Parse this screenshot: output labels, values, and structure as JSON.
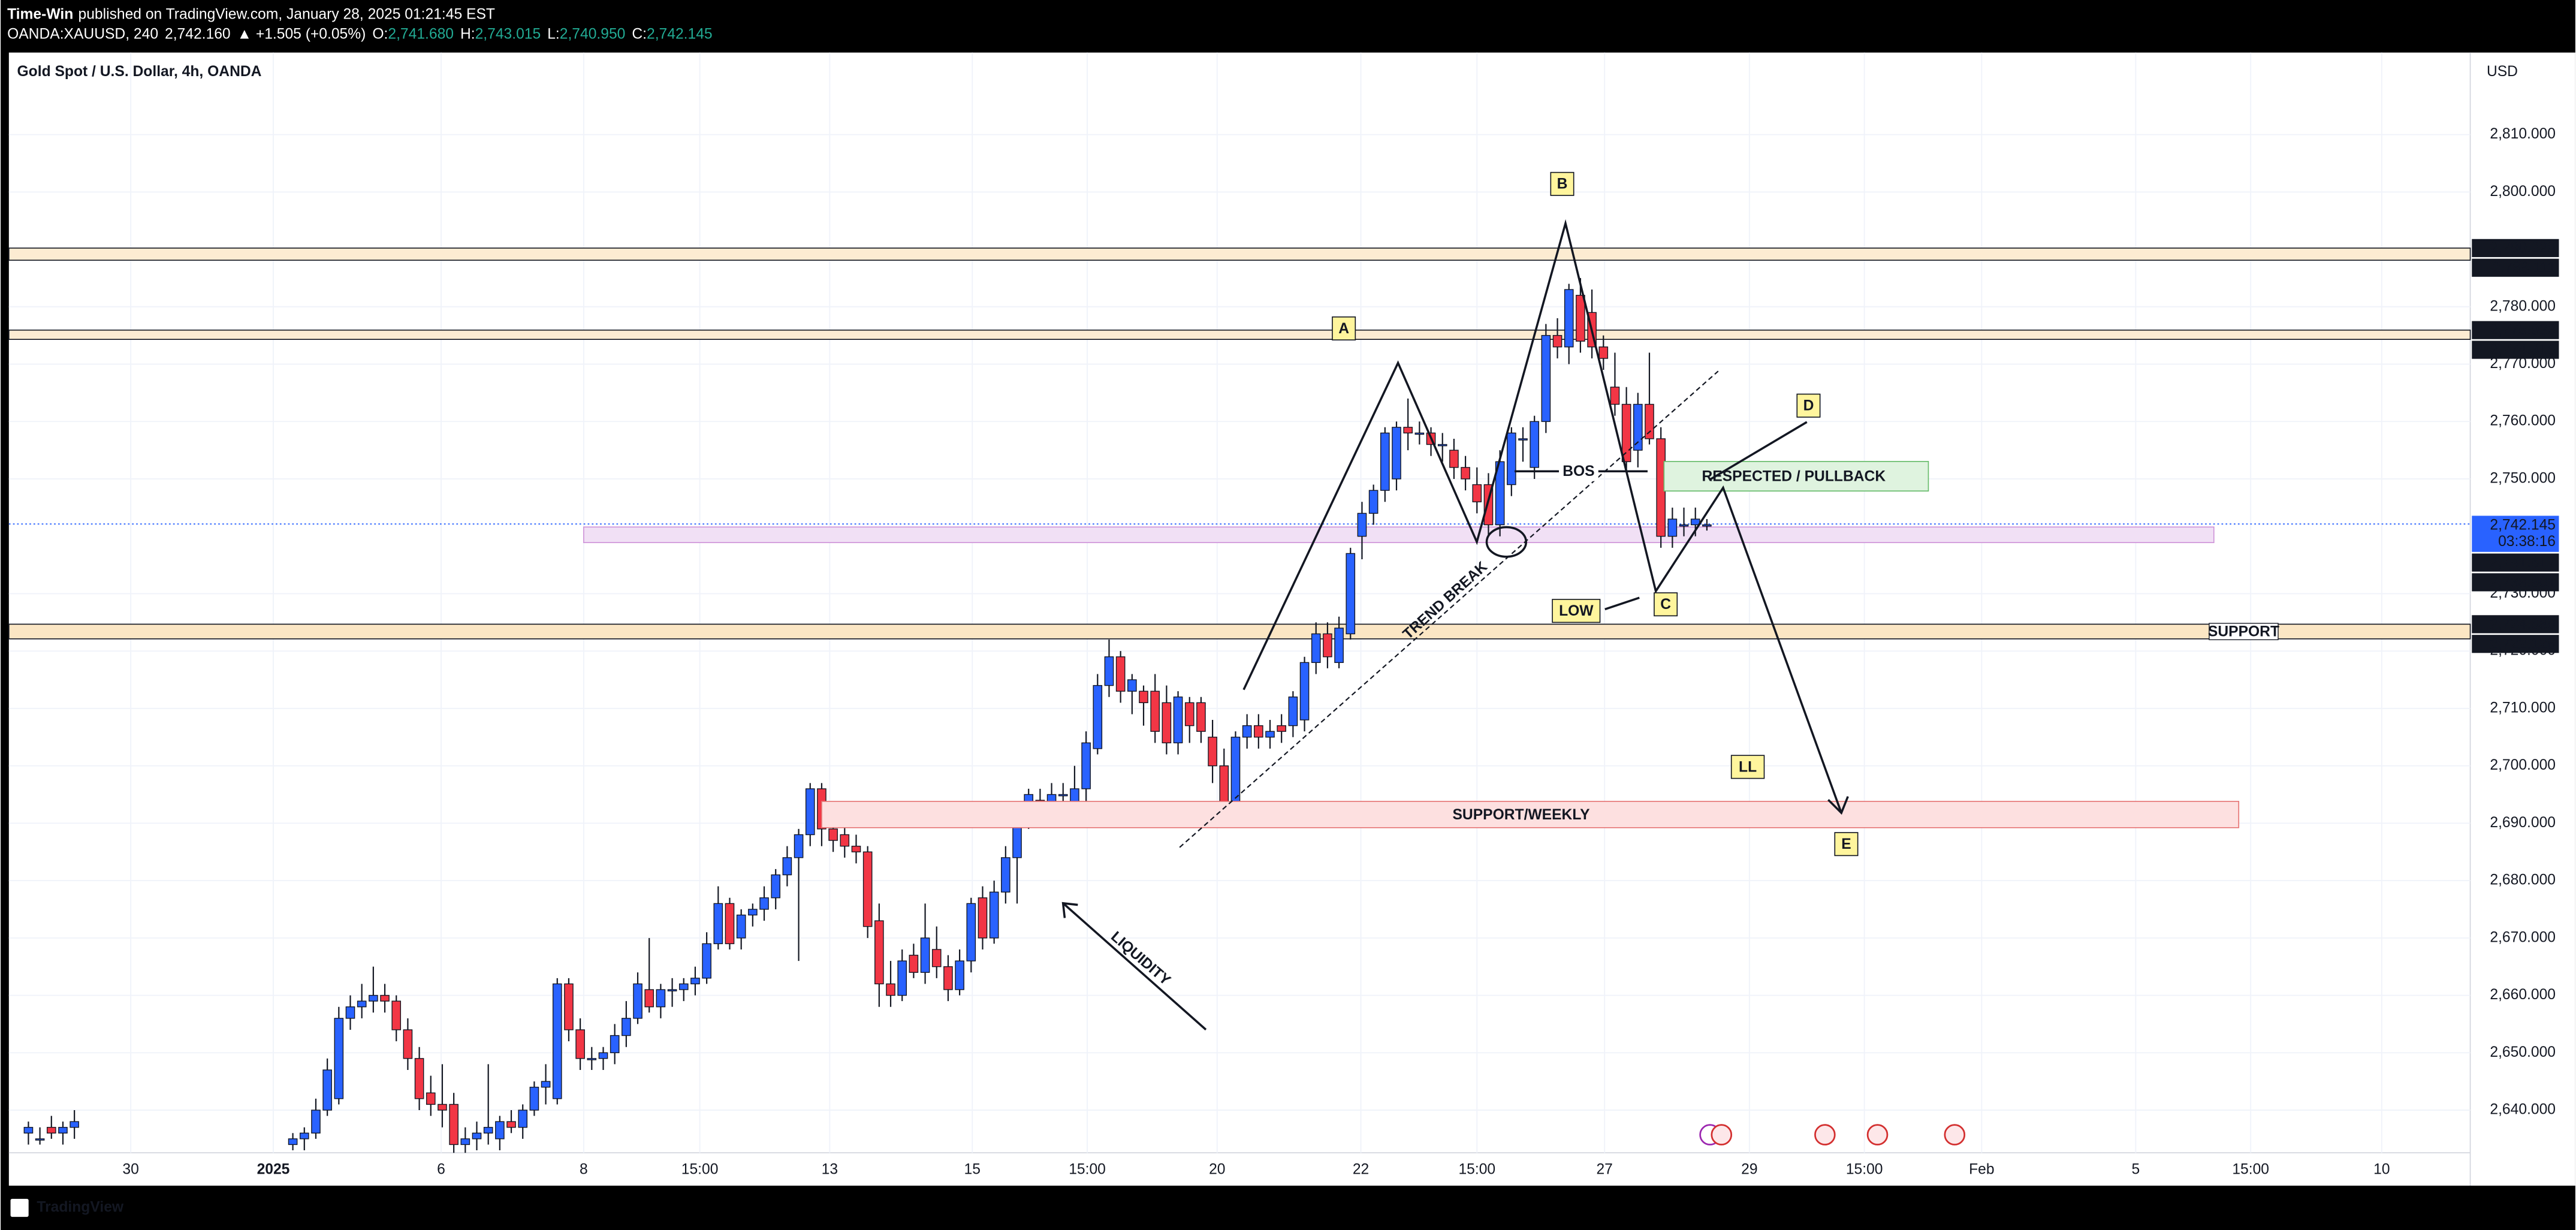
{
  "header": {
    "author": "Time-Win",
    "published": "published on TradingView.com, January 28, 2025 01:21:45 EST",
    "symbol": "OANDA:XAUUSD, 240",
    "last": "2,742.160",
    "change": "▲ +1.505 (+0.05%)",
    "ohlc": [
      {
        "label": "O:",
        "value": "2,741.680"
      },
      {
        "label": "H:",
        "value": "2,743.015"
      },
      {
        "label": "L:",
        "value": "2,740.950"
      },
      {
        "label": "C:",
        "value": "2,742.145"
      }
    ]
  },
  "footer": {
    "brand": "TradingView"
  },
  "chart_data": {
    "type": "candlestick",
    "title": "Gold Spot / U.S. Dollar, 4h, OANDA",
    "currency": "USD",
    "up_color": "#2962ff",
    "down_color": "#f23645",
    "grid": true,
    "x": [
      1,
      2,
      3,
      4,
      5,
      24,
      25,
      26,
      27,
      28,
      29,
      30,
      31,
      32,
      33,
      34,
      35,
      36,
      37,
      38,
      39,
      40,
      41,
      42,
      43,
      44,
      45,
      46,
      47,
      48,
      49,
      50,
      51,
      52,
      53,
      54,
      55,
      56,
      57,
      58,
      59,
      60,
      61,
      62,
      63,
      64,
      65,
      66,
      67,
      68,
      69,
      70,
      71,
      72,
      73,
      74,
      75,
      76,
      77,
      78,
      79,
      80,
      81,
      82,
      83,
      84,
      85,
      86,
      87,
      88,
      89,
      90,
      91,
      92,
      93,
      94,
      95,
      96,
      97,
      98,
      99,
      100,
      101,
      102,
      103,
      104,
      105,
      106,
      107,
      108,
      109,
      110,
      111,
      112,
      113,
      114,
      115,
      116,
      117,
      118,
      119,
      120,
      121,
      122,
      123,
      124,
      125,
      126,
      127,
      128,
      129,
      130,
      131,
      132,
      133,
      134,
      135,
      136,
      137,
      138,
      139,
      140,
      141,
      142,
      143,
      144,
      145,
      146,
      147
    ],
    "open": [
      2636,
      2635,
      2637,
      2636,
      2637,
      2634,
      2635,
      2636,
      2640,
      2642,
      2656,
      2658,
      2659,
      2660,
      2659,
      2654,
      2649,
      2643,
      2641,
      2641,
      2634,
      2635,
      2636,
      2635,
      2638,
      2637,
      2640,
      2644,
      2642,
      2662,
      2654,
      2649,
      2649,
      2650,
      2653,
      2656,
      2661,
      2658,
      2661,
      2661,
      2662,
      2663,
      2669,
      2676,
      2670,
      2674,
      2675,
      2677,
      2681,
      2684,
      2688,
      2696,
      2689,
      2688,
      2686,
      2685,
      2673,
      2662,
      2660,
      2667,
      2664,
      2668,
      2665,
      2661,
      2666,
      2677,
      2670,
      2678,
      2684,
      2691,
      2694,
      2692,
      2695,
      2693,
      2696,
      2703,
      2714,
      2719,
      2713,
      2713,
      2713,
      2711,
      2704,
      2711,
      2711,
      2705,
      2700,
      2692,
      2705,
      2707,
      2705,
      2707,
      2707,
      2708,
      2718,
      2723,
      2718,
      2723,
      2740,
      2744,
      2748,
      2750,
      2759,
      2758,
      2758,
      2756,
      2755,
      2752,
      2749,
      2749,
      2742,
      2749,
      2757,
      2752,
      2760,
      2775,
      2773,
      2782,
      2779,
      2773,
      2766,
      2763,
      2755,
      2763,
      2757,
      2740,
      2742,
      2742,
      2742
    ],
    "high": [
      2638,
      2637,
      2639,
      2638,
      2640,
      2636,
      2637,
      2642,
      2649,
      2658,
      2660,
      2662,
      2665,
      2662,
      2660,
      2656,
      2651,
      2646,
      2648,
      2643,
      2637,
      2638,
      2648,
      2639,
      2640,
      2641,
      2645,
      2648,
      2663,
      2663,
      2656,
      2651,
      2651,
      2655,
      2659,
      2664,
      2670,
      2662,
      2663,
      2663,
      2665,
      2671,
      2679,
      2677,
      2675,
      2676,
      2679,
      2682,
      2686,
      2689,
      2697,
      2697,
      2692,
      2690,
      2688,
      2686,
      2676,
      2666,
      2668,
      2669,
      2676,
      2672,
      2667,
      2668,
      2677,
      2679,
      2680,
      2686,
      2693,
      2696,
      2696,
      2697,
      2697,
      2700,
      2706,
      2716,
      2722,
      2720,
      2716,
      2714,
      2716,
      2714,
      2713,
      2712,
      2712,
      2708,
      2703,
      2706,
      2709,
      2709,
      2708,
      2709,
      2713,
      2719,
      2725,
      2725,
      2726,
      2738,
      2746,
      2749,
      2759,
      2760,
      2764,
      2760,
      2759,
      2758,
      2757,
      2754,
      2752,
      2751,
      2755,
      2759,
      2759,
      2761,
      2777,
      2778,
      2784,
      2785,
      2783,
      2775,
      2772,
      2766,
      2765,
      2772,
      2759,
      2745,
      2745,
      2745,
      2743
    ],
    "low": [
      2634,
      2634,
      2635,
      2634,
      2635,
      2633,
      2633,
      2635,
      2639,
      2641,
      2654,
      2656,
      2657,
      2657,
      2652,
      2647,
      2640,
      2639,
      2637,
      2631,
      2632,
      2633,
      2634,
      2633,
      2636,
      2635,
      2639,
      2641,
      2641,
      2652,
      2647,
      2647,
      2647,
      2648,
      2651,
      2655,
      2657,
      2656,
      2658,
      2659,
      2660,
      2662,
      2668,
      2668,
      2668,
      2672,
      2673,
      2675,
      2679,
      2666,
      2686,
      2686,
      2685,
      2684,
      2683,
      2670,
      2658,
      2658,
      2659,
      2663,
      2662,
      2663,
      2659,
      2660,
      2664,
      2668,
      2669,
      2676,
      2676,
      2689,
      2690,
      2690,
      2692,
      2691,
      2690,
      2702,
      2712,
      2711,
      2709,
      2707,
      2704,
      2702,
      2702,
      2704,
      2704,
      2697,
      2690,
      2691,
      2703,
      2703,
      2703,
      2704,
      2705,
      2706,
      2716,
      2717,
      2717,
      2722,
      2736,
      2742,
      2746,
      2748,
      2755,
      2756,
      2754,
      2753,
      2750,
      2748,
      2744,
      2740,
      2740,
      2747,
      2753,
      2750,
      2758,
      2771,
      2770,
      2772,
      2771,
      2769,
      2761,
      2751,
      2752,
      2756,
      2738,
      2738,
      2740,
      2740,
      2741
    ],
    "close": [
      2637,
      2635,
      2636,
      2637,
      2638,
      2635,
      2636,
      2640,
      2647,
      2656,
      2658,
      2659,
      2660,
      2659,
      2654,
      2649,
      2642,
      2641,
      2640,
      2634,
      2635,
      2636,
      2637,
      2638,
      2637,
      2640,
      2644,
      2645,
      2662,
      2654,
      2649,
      2649,
      2650,
      2653,
      2656,
      2662,
      2658,
      2661,
      2661,
      2662,
      2663,
      2669,
      2676,
      2669,
      2674,
      2675,
      2677,
      2681,
      2684,
      2688,
      2696,
      2689,
      2687,
      2686,
      2685,
      2672,
      2662,
      2660,
      2666,
      2664,
      2670,
      2665,
      2661,
      2666,
      2676,
      2670,
      2678,
      2684,
      2692,
      2695,
      2692,
      2695,
      2695,
      2696,
      2704,
      2714,
      2719,
      2713,
      2715,
      2711,
      2706,
      2704,
      2712,
      2707,
      2706,
      2700,
      2692,
      2705,
      2707,
      2705,
      2706,
      2706,
      2712,
      2718,
      2723,
      2719,
      2724,
      2737,
      2744,
      2748,
      2758,
      2759,
      2758,
      2758,
      2756,
      2756,
      2752,
      2750,
      2746,
      2742,
      2753,
      2758,
      2757,
      2760,
      2775,
      2773,
      2783,
      2774,
      2773,
      2771,
      2763,
      2753,
      2763,
      2757,
      2740,
      2743,
      2742,
      2743,
      2742
    ],
    "xlim": [
      -0.7,
      213.4
    ],
    "ylim": [
      2632.56,
      2824.3
    ],
    "xticks": [
      {
        "value": 9.9,
        "label": "30"
      },
      {
        "value": 22.3,
        "label": "2025"
      },
      {
        "value": 36.9,
        "label": "6"
      },
      {
        "value": 49.3,
        "label": "8"
      },
      {
        "value": 59.4,
        "label": "15:00"
      },
      {
        "value": 70.7,
        "label": "13"
      },
      {
        "value": 83.1,
        "label": "15"
      },
      {
        "value": 93.1,
        "label": "15:00"
      },
      {
        "value": 104.4,
        "label": "20"
      },
      {
        "value": 116.9,
        "label": "22"
      },
      {
        "value": 127,
        "label": "15:00"
      },
      {
        "value": 138.1,
        "label": "27"
      },
      {
        "value": 150.7,
        "label": "29"
      },
      {
        "value": 160.7,
        "label": "15:00"
      },
      {
        "value": 170.9,
        "label": "Feb"
      },
      {
        "value": 184.3,
        "label": "5"
      },
      {
        "value": 194.3,
        "label": "15:00"
      },
      {
        "value": 205.7,
        "label": "10"
      }
    ],
    "yticks": [
      {
        "value": 2640,
        "label": "2,640.000"
      },
      {
        "value": 2650,
        "label": "2,650.000"
      },
      {
        "value": 2660,
        "label": "2,660.000"
      },
      {
        "value": 2670,
        "label": "2,670.000"
      },
      {
        "value": 2680,
        "label": "2,680.000"
      },
      {
        "value": 2690,
        "label": "2,690.000"
      },
      {
        "value": 2700,
        "label": "2,700.000"
      },
      {
        "value": 2710,
        "label": "2,710.000"
      },
      {
        "value": 2720,
        "label": "2,720.000"
      },
      {
        "value": 2730,
        "label": "2,730.000"
      },
      {
        "value": 2750,
        "label": "2,750.000"
      },
      {
        "value": 2760,
        "label": "2,760.000"
      },
      {
        "value": 2770,
        "label": "2,770.000"
      },
      {
        "value": 2780,
        "label": "2,780.000"
      },
      {
        "value": 2800,
        "label": "2,800.000"
      },
      {
        "value": 2810,
        "label": "2,810.000"
      }
    ],
    "zones": [
      {
        "top": {
          "value": 2790.229,
          "label": "2,790.229"
        },
        "bottom": {
          "value": 2788.111,
          "label": "2,788.111"
        },
        "color": "#fcecd2"
      },
      {
        "top": {
          "value": 2775.933,
          "label": "2,775.933"
        },
        "bottom": {
          "value": 2774.316,
          "label": "2,774.316"
        },
        "color": "#fcecd2"
      },
      {
        "top": {
          "value": 2741.617,
          "label": "2,741.617"
        },
        "bottom": {
          "value": 2738.901,
          "label": "2,738.901"
        },
        "color": "#f1e0f5",
        "x_range": [
          49.3,
          191.1
        ]
      },
      {
        "top": {
          "value": 2724.68,
          "label": "2,724.680"
        },
        "bottom": {
          "value": 2722.128,
          "label": "2,722.128"
        },
        "color": "#fbe6c4",
        "name": "SUPPORT"
      }
    ],
    "last_price": {
      "value": 2742.145,
      "label": "2,742.145",
      "countdown": "03:38:16",
      "color": "#2962ff"
    },
    "annotations": [
      "A",
      "B",
      "C",
      "D",
      "E",
      "LL",
      "LOW",
      "BOS",
      "RESPECTED / PULLBACK",
      "SUPPORT/WEEKLY",
      "TREND BREAK",
      "LIQUIDITY"
    ]
  }
}
